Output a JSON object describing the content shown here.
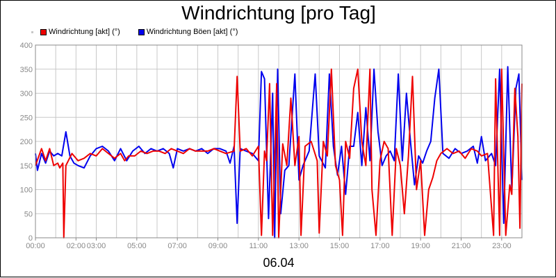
{
  "chart_data": {
    "type": "line",
    "title": "Windrichtung [pro Tag]",
    "date_label": "06.04",
    "ylim": [
      0,
      400
    ],
    "yticks": [
      "0",
      "50",
      "100",
      "150",
      "200",
      "250",
      "300",
      "350",
      "400"
    ],
    "xlim": [
      0,
      24
    ],
    "xticks": [
      {
        "h": 0,
        "label": "00:00"
      },
      {
        "h": 2,
        "label": "02:00"
      },
      {
        "h": 3,
        "label": "03:00"
      },
      {
        "h": 5,
        "label": "05:00"
      },
      {
        "h": 7,
        "label": "07:00"
      },
      {
        "h": 9,
        "label": "09:00"
      },
      {
        "h": 11,
        "label": "11:00"
      },
      {
        "h": 13,
        "label": "13:00"
      },
      {
        "h": 15,
        "label": "15:00"
      },
      {
        "h": 17,
        "label": "17:00"
      },
      {
        "h": 19,
        "label": "19:00"
      },
      {
        "h": 21,
        "label": "21:00"
      },
      {
        "h": 23,
        "label": "23:00"
      }
    ],
    "grid": true,
    "legend_position": "top-left",
    "series": [
      {
        "name": "Windrichtung [akt] (°)",
        "color": "#ee0000",
        "points": [
          [
            0.0,
            150
          ],
          [
            0.3,
            185
          ],
          [
            0.5,
            160
          ],
          [
            0.7,
            185
          ],
          [
            0.9,
            150
          ],
          [
            1.1,
            155
          ],
          [
            1.2,
            145
          ],
          [
            1.35,
            155
          ],
          [
            1.4,
            0
          ],
          [
            1.5,
            150
          ],
          [
            1.8,
            175
          ],
          [
            2.1,
            160
          ],
          [
            2.4,
            165
          ],
          [
            2.7,
            175
          ],
          [
            3.0,
            170
          ],
          [
            3.3,
            185
          ],
          [
            3.6,
            175
          ],
          [
            3.9,
            165
          ],
          [
            4.2,
            175
          ],
          [
            4.4,
            160
          ],
          [
            4.6,
            170
          ],
          [
            4.9,
            170
          ],
          [
            5.2,
            180
          ],
          [
            5.5,
            175
          ],
          [
            5.8,
            180
          ],
          [
            6.1,
            180
          ],
          [
            6.4,
            175
          ],
          [
            6.7,
            185
          ],
          [
            7.0,
            180
          ],
          [
            7.3,
            175
          ],
          [
            7.6,
            185
          ],
          [
            7.9,
            180
          ],
          [
            8.2,
            180
          ],
          [
            8.5,
            180
          ],
          [
            8.8,
            185
          ],
          [
            9.1,
            180
          ],
          [
            9.4,
            175
          ],
          [
            9.8,
            180
          ],
          [
            9.95,
            335
          ],
          [
            10.1,
            180
          ],
          [
            10.4,
            185
          ],
          [
            10.7,
            170
          ],
          [
            11.0,
            190
          ],
          [
            11.15,
            5
          ],
          [
            11.3,
            180
          ],
          [
            11.4,
            160
          ],
          [
            11.55,
            320
          ],
          [
            11.7,
            5
          ],
          [
            11.9,
            320
          ],
          [
            12.0,
            0
          ],
          [
            12.2,
            195
          ],
          [
            12.4,
            150
          ],
          [
            12.6,
            290
          ],
          [
            12.8,
            150
          ],
          [
            13.0,
            210
          ],
          [
            13.1,
            5
          ],
          [
            13.3,
            190
          ],
          [
            13.6,
            200
          ],
          [
            13.9,
            160
          ],
          [
            14.0,
            10
          ],
          [
            14.2,
            200
          ],
          [
            14.4,
            170
          ],
          [
            14.6,
            350
          ],
          [
            14.8,
            150
          ],
          [
            15.0,
            120
          ],
          [
            15.15,
            5
          ],
          [
            15.3,
            200
          ],
          [
            15.5,
            165
          ],
          [
            15.7,
            310
          ],
          [
            15.9,
            350
          ],
          [
            16.1,
            200
          ],
          [
            16.3,
            150
          ],
          [
            16.5,
            350
          ],
          [
            16.6,
            100
          ],
          [
            16.8,
            5
          ],
          [
            17.0,
            160
          ],
          [
            17.2,
            200
          ],
          [
            17.4,
            185
          ],
          [
            17.6,
            5
          ],
          [
            17.8,
            185
          ],
          [
            18.0,
            150
          ],
          [
            18.2,
            50
          ],
          [
            18.4,
            170
          ],
          [
            18.6,
            335
          ],
          [
            18.8,
            100
          ],
          [
            19.0,
            160
          ],
          [
            19.2,
            5
          ],
          [
            19.4,
            100
          ],
          [
            19.6,
            125
          ],
          [
            19.8,
            160
          ],
          [
            20.0,
            175
          ],
          [
            20.3,
            185
          ],
          [
            20.6,
            175
          ],
          [
            20.9,
            180
          ],
          [
            21.2,
            165
          ],
          [
            21.5,
            185
          ],
          [
            21.8,
            180
          ],
          [
            22.0,
            170
          ],
          [
            22.3,
            175
          ],
          [
            22.6,
            5
          ],
          [
            22.7,
            330
          ],
          [
            22.9,
            5
          ],
          [
            23.0,
            350
          ],
          [
            23.2,
            5
          ],
          [
            23.4,
            110
          ],
          [
            23.5,
            90
          ],
          [
            23.65,
            310
          ],
          [
            23.8,
            210
          ],
          [
            23.9,
            20
          ],
          [
            24.0,
            320
          ]
        ]
      },
      {
        "name": "Windrichtung Böen [akt] (°)",
        "color": "#0000ee",
        "points": [
          [
            0.0,
            175
          ],
          [
            0.1,
            140
          ],
          [
            0.3,
            175
          ],
          [
            0.5,
            155
          ],
          [
            0.7,
            180
          ],
          [
            0.9,
            170
          ],
          [
            1.1,
            175
          ],
          [
            1.3,
            170
          ],
          [
            1.5,
            220
          ],
          [
            1.7,
            170
          ],
          [
            1.9,
            155
          ],
          [
            2.1,
            150
          ],
          [
            2.4,
            145
          ],
          [
            2.7,
            170
          ],
          [
            3.0,
            185
          ],
          [
            3.3,
            190
          ],
          [
            3.6,
            180
          ],
          [
            3.9,
            160
          ],
          [
            4.2,
            185
          ],
          [
            4.5,
            160
          ],
          [
            4.8,
            180
          ],
          [
            5.1,
            190
          ],
          [
            5.4,
            175
          ],
          [
            5.7,
            185
          ],
          [
            6.0,
            180
          ],
          [
            6.3,
            185
          ],
          [
            6.6,
            175
          ],
          [
            6.8,
            145
          ],
          [
            7.0,
            185
          ],
          [
            7.3,
            180
          ],
          [
            7.6,
            185
          ],
          [
            7.9,
            180
          ],
          [
            8.2,
            185
          ],
          [
            8.5,
            175
          ],
          [
            8.8,
            185
          ],
          [
            9.1,
            185
          ],
          [
            9.4,
            180
          ],
          [
            9.6,
            155
          ],
          [
            9.8,
            190
          ],
          [
            9.95,
            30
          ],
          [
            10.1,
            185
          ],
          [
            10.4,
            180
          ],
          [
            10.7,
            175
          ],
          [
            11.0,
            160
          ],
          [
            11.15,
            345
          ],
          [
            11.3,
            330
          ],
          [
            11.5,
            40
          ],
          [
            11.7,
            300
          ],
          [
            11.8,
            0
          ],
          [
            11.95,
            350
          ],
          [
            12.1,
            50
          ],
          [
            12.3,
            140
          ],
          [
            12.5,
            150
          ],
          [
            12.8,
            340
          ],
          [
            13.0,
            120
          ],
          [
            13.2,
            150
          ],
          [
            13.5,
            180
          ],
          [
            13.8,
            340
          ],
          [
            14.0,
            170
          ],
          [
            14.3,
            145
          ],
          [
            14.5,
            340
          ],
          [
            14.7,
            190
          ],
          [
            14.9,
            130
          ],
          [
            15.1,
            190
          ],
          [
            15.3,
            90
          ],
          [
            15.5,
            190
          ],
          [
            15.7,
            190
          ],
          [
            15.9,
            260
          ],
          [
            16.1,
            150
          ],
          [
            16.3,
            270
          ],
          [
            16.5,
            160
          ],
          [
            16.7,
            350
          ],
          [
            16.9,
            220
          ],
          [
            17.1,
            150
          ],
          [
            17.3,
            170
          ],
          [
            17.5,
            180
          ],
          [
            17.7,
            160
          ],
          [
            17.9,
            340
          ],
          [
            18.1,
            160
          ],
          [
            18.3,
            300
          ],
          [
            18.5,
            200
          ],
          [
            18.7,
            110
          ],
          [
            18.9,
            170
          ],
          [
            19.1,
            155
          ],
          [
            19.3,
            180
          ],
          [
            19.5,
            200
          ],
          [
            19.7,
            290
          ],
          [
            19.9,
            350
          ],
          [
            20.1,
            175
          ],
          [
            20.4,
            165
          ],
          [
            20.7,
            185
          ],
          [
            21.0,
            175
          ],
          [
            21.3,
            180
          ],
          [
            21.6,
            190
          ],
          [
            21.8,
            155
          ],
          [
            22.0,
            210
          ],
          [
            22.2,
            160
          ],
          [
            22.5,
            175
          ],
          [
            22.7,
            150
          ],
          [
            22.9,
            350
          ],
          [
            23.1,
            30
          ],
          [
            23.3,
            355
          ],
          [
            23.5,
            100
          ],
          [
            23.7,
            310
          ],
          [
            23.85,
            340
          ],
          [
            24.0,
            120
          ]
        ]
      }
    ]
  }
}
